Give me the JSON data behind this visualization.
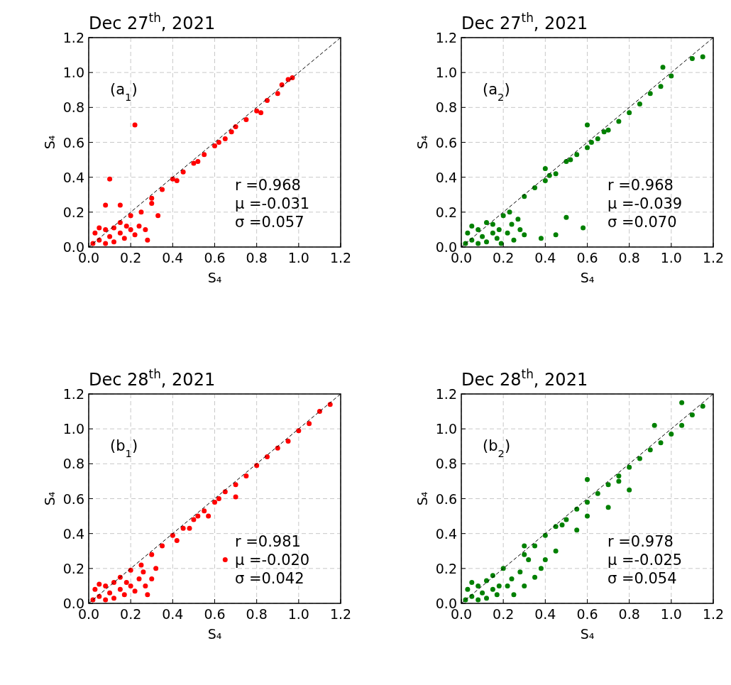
{
  "chart_data": [
    {
      "type": "scatter",
      "title": "Dec 27$^{th}$, 2021",
      "xlabel": "S₄",
      "ylabel": "S₄",
      "xlim": [
        0,
        1.2
      ],
      "ylim": [
        0,
        1.2
      ],
      "grid": true,
      "marker": "circle",
      "xticks": [
        {
          "value": 0,
          "label": "0.0"
        },
        {
          "value": 0.2,
          "label": "0.2"
        },
        {
          "value": 0.4,
          "label": "0.4"
        },
        {
          "value": 0.6,
          "label": "0.6"
        },
        {
          "value": 0.8,
          "label": "0.8"
        },
        {
          "value": 1,
          "label": "1.0"
        },
        {
          "value": 1.2,
          "label": "1.2"
        }
      ],
      "yticks": [
        {
          "value": 0,
          "label": "0.0"
        },
        {
          "value": 0.2,
          "label": "0.2"
        },
        {
          "value": 0.4,
          "label": "0.4"
        },
        {
          "value": 0.6,
          "label": "0.6"
        },
        {
          "value": 0.8,
          "label": "0.8"
        },
        {
          "value": 1,
          "label": "1.0"
        },
        {
          "value": 1.2,
          "label": "1.2"
        }
      ],
      "annotations": [
        "(a$_{1}$)",
        "r  =0.968",
        "μ =-0.031",
        "σ =0.057"
      ],
      "series": [
        {
          "color": "#ff0000",
          "x": [
            0.02,
            0.03,
            0.05,
            0.05,
            0.08,
            0.08,
            0.1,
            0.12,
            0.12,
            0.15,
            0.15,
            0.17,
            0.18,
            0.2,
            0.2,
            0.22,
            0.24,
            0.25,
            0.27,
            0.28,
            0.1,
            0.08,
            0.15,
            0.22,
            0.3,
            0.33,
            0.3,
            0.35,
            0.4,
            0.42,
            0.45,
            0.5,
            0.52,
            0.55,
            0.6,
            0.62,
            0.65,
            0.68,
            0.7,
            0.75,
            0.8,
            0.82,
            0.85,
            0.9,
            0.92,
            0.95,
            0.97
          ],
          "values": [
            0.02,
            0.08,
            0.11,
            0.04,
            0.1,
            0.02,
            0.06,
            0.11,
            0.03,
            0.08,
            0.14,
            0.05,
            0.12,
            0.18,
            0.1,
            0.07,
            0.12,
            0.2,
            0.1,
            0.04,
            0.39,
            0.24,
            0.24,
            0.7,
            0.25,
            0.18,
            0.28,
            0.33,
            0.39,
            0.38,
            0.43,
            0.48,
            0.49,
            0.53,
            0.58,
            0.6,
            0.62,
            0.66,
            0.69,
            0.73,
            0.78,
            0.77,
            0.84,
            0.88,
            0.93,
            0.96,
            0.97
          ]
        },
        {
          "type": "line",
          "color": "#000000",
          "line_style": "dashed",
          "marker": "none",
          "x": [
            0,
            1.2
          ],
          "values": [
            0,
            1.2
          ]
        }
      ]
    },
    {
      "type": "scatter",
      "title": "Dec 27$^{th}$, 2021",
      "xlabel": "S₄",
      "ylabel": "S₄",
      "xlim": [
        0,
        1.2
      ],
      "ylim": [
        0,
        1.2
      ],
      "grid": true,
      "marker": "circle",
      "xticks": [
        {
          "value": 0,
          "label": "0.0"
        },
        {
          "value": 0.2,
          "label": "0.2"
        },
        {
          "value": 0.4,
          "label": "0.4"
        },
        {
          "value": 0.6,
          "label": "0.6"
        },
        {
          "value": 0.8,
          "label": "0.8"
        },
        {
          "value": 1,
          "label": "1.0"
        },
        {
          "value": 1.2,
          "label": "1.2"
        }
      ],
      "yticks": [
        {
          "value": 0,
          "label": "0.0"
        },
        {
          "value": 0.2,
          "label": "0.2"
        },
        {
          "value": 0.4,
          "label": "0.4"
        },
        {
          "value": 0.6,
          "label": "0.6"
        },
        {
          "value": 0.8,
          "label": "0.8"
        },
        {
          "value": 1,
          "label": "1.0"
        },
        {
          "value": 1.2,
          "label": "1.2"
        }
      ],
      "annotations": [
        "(a$_{2}$)",
        "r  =0.968",
        "μ =-0.039",
        "σ =0.070"
      ],
      "series": [
        {
          "color": "#008000",
          "x": [
            0.02,
            0.03,
            0.05,
            0.05,
            0.08,
            0.08,
            0.1,
            0.12,
            0.12,
            0.15,
            0.15,
            0.17,
            0.18,
            0.2,
            0.19,
            0.22,
            0.24,
            0.25,
            0.27,
            0.28,
            0.23,
            0.3,
            0.38,
            0.45,
            0.5,
            0.58,
            0.4,
            0.6,
            0.3,
            0.35,
            0.4,
            0.42,
            0.45,
            0.5,
            0.52,
            0.55,
            0.6,
            0.62,
            0.65,
            0.68,
            0.7,
            0.75,
            0.8,
            0.85,
            0.9,
            0.95,
            1.0,
            1.1,
            1.15,
            0.96
          ],
          "values": [
            0.02,
            0.08,
            0.12,
            0.04,
            0.1,
            0.02,
            0.06,
            0.14,
            0.03,
            0.08,
            0.13,
            0.05,
            0.1,
            0.18,
            0.02,
            0.08,
            0.13,
            0.04,
            0.16,
            0.1,
            0.2,
            0.07,
            0.05,
            0.07,
            0.17,
            0.11,
            0.45,
            0.7,
            0.29,
            0.34,
            0.38,
            0.41,
            0.42,
            0.49,
            0.5,
            0.53,
            0.57,
            0.6,
            0.62,
            0.66,
            0.67,
            0.72,
            0.77,
            0.82,
            0.88,
            0.92,
            0.98,
            1.08,
            1.09,
            1.03
          ]
        },
        {
          "type": "line",
          "color": "#000000",
          "line_style": "dashed",
          "marker": "none",
          "x": [
            0,
            1.2
          ],
          "values": [
            0,
            1.2
          ]
        }
      ]
    },
    {
      "type": "scatter",
      "title": "Dec 28$^{th}$, 2021",
      "xlabel": "S₄",
      "ylabel": "S₄",
      "xlim": [
        0,
        1.2
      ],
      "ylim": [
        0,
        1.2
      ],
      "grid": true,
      "marker": "circle",
      "xticks": [
        {
          "value": 0,
          "label": "0.0"
        },
        {
          "value": 0.2,
          "label": "0.2"
        },
        {
          "value": 0.4,
          "label": "0.4"
        },
        {
          "value": 0.6,
          "label": "0.6"
        },
        {
          "value": 0.8,
          "label": "0.8"
        },
        {
          "value": 1,
          "label": "1.0"
        },
        {
          "value": 1.2,
          "label": "1.2"
        }
      ],
      "yticks": [
        {
          "value": 0,
          "label": "0.0"
        },
        {
          "value": 0.2,
          "label": "0.2"
        },
        {
          "value": 0.4,
          "label": "0.4"
        },
        {
          "value": 0.6,
          "label": "0.6"
        },
        {
          "value": 0.8,
          "label": "0.8"
        },
        {
          "value": 1,
          "label": "1.0"
        },
        {
          "value": 1.2,
          "label": "1.2"
        }
      ],
      "annotations": [
        "(b$_{1}$)",
        "r  =0.981",
        "μ =-0.020",
        "σ =0.042"
      ],
      "series": [
        {
          "color": "#ff0000",
          "x": [
            0.02,
            0.03,
            0.05,
            0.05,
            0.08,
            0.08,
            0.1,
            0.12,
            0.12,
            0.15,
            0.15,
            0.17,
            0.18,
            0.2,
            0.2,
            0.22,
            0.24,
            0.25,
            0.27,
            0.28,
            0.3,
            0.26,
            0.32,
            0.42,
            0.48,
            0.57,
            0.65,
            0.7,
            0.3,
            0.35,
            0.4,
            0.45,
            0.5,
            0.52,
            0.55,
            0.6,
            0.62,
            0.65,
            0.7,
            0.75,
            0.8,
            0.85,
            0.9,
            0.95,
            1.0,
            1.05,
            1.1,
            1.15
          ],
          "values": [
            0.02,
            0.08,
            0.11,
            0.04,
            0.1,
            0.02,
            0.06,
            0.12,
            0.03,
            0.08,
            0.15,
            0.05,
            0.12,
            0.19,
            0.1,
            0.07,
            0.14,
            0.22,
            0.1,
            0.05,
            0.14,
            0.18,
            0.2,
            0.36,
            0.43,
            0.5,
            0.25,
            0.61,
            0.28,
            0.33,
            0.39,
            0.43,
            0.48,
            0.5,
            0.53,
            0.58,
            0.6,
            0.64,
            0.68,
            0.73,
            0.79,
            0.84,
            0.89,
            0.93,
            0.99,
            1.03,
            1.1,
            1.14
          ]
        },
        {
          "type": "line",
          "color": "#000000",
          "line_style": "dashed",
          "marker": "none",
          "x": [
            0,
            1.2
          ],
          "values": [
            0,
            1.2
          ]
        }
      ]
    },
    {
      "type": "scatter",
      "title": "Dec 28$^{th}$, 2021",
      "xlabel": "S₄",
      "ylabel": "S₄",
      "xlim": [
        0,
        1.2
      ],
      "ylim": [
        0,
        1.2
      ],
      "grid": true,
      "marker": "circle",
      "xticks": [
        {
          "value": 0,
          "label": "0.0"
        },
        {
          "value": 0.2,
          "label": "0.2"
        },
        {
          "value": 0.4,
          "label": "0.4"
        },
        {
          "value": 0.6,
          "label": "0.6"
        },
        {
          "value": 0.8,
          "label": "0.8"
        },
        {
          "value": 1,
          "label": "1.0"
        },
        {
          "value": 1.2,
          "label": "1.2"
        }
      ],
      "yticks": [
        {
          "value": 0,
          "label": "0.0"
        },
        {
          "value": 0.2,
          "label": "0.2"
        },
        {
          "value": 0.4,
          "label": "0.4"
        },
        {
          "value": 0.6,
          "label": "0.6"
        },
        {
          "value": 0.8,
          "label": "0.8"
        },
        {
          "value": 1,
          "label": "1.0"
        },
        {
          "value": 1.2,
          "label": "1.2"
        }
      ],
      "annotations": [
        "(b$_{2}$)",
        "r  =0.978",
        "μ =-0.025",
        "σ =0.054"
      ],
      "series": [
        {
          "color": "#008000",
          "x": [
            0.02,
            0.03,
            0.05,
            0.05,
            0.08,
            0.08,
            0.1,
            0.12,
            0.12,
            0.15,
            0.15,
            0.17,
            0.18,
            0.2,
            0.22,
            0.24,
            0.25,
            0.28,
            0.3,
            0.32,
            0.35,
            0.38,
            0.3,
            0.4,
            0.45,
            0.48,
            0.55,
            0.6,
            0.6,
            0.7,
            0.75,
            0.8,
            0.3,
            0.35,
            0.4,
            0.45,
            0.5,
            0.55,
            0.6,
            0.65,
            0.7,
            0.75,
            0.8,
            0.85,
            0.9,
            0.95,
            1.0,
            1.05,
            1.1,
            1.15,
            0.92,
            1.05
          ],
          "values": [
            0.02,
            0.08,
            0.12,
            0.04,
            0.1,
            0.02,
            0.06,
            0.13,
            0.03,
            0.08,
            0.16,
            0.05,
            0.1,
            0.2,
            0.1,
            0.14,
            0.05,
            0.18,
            0.1,
            0.25,
            0.15,
            0.2,
            0.33,
            0.25,
            0.3,
            0.45,
            0.42,
            0.5,
            0.71,
            0.55,
            0.7,
            0.65,
            0.28,
            0.33,
            0.39,
            0.44,
            0.48,
            0.54,
            0.58,
            0.63,
            0.68,
            0.73,
            0.78,
            0.83,
            0.88,
            0.92,
            0.97,
            1.02,
            1.08,
            1.13,
            1.02,
            1.15
          ]
        },
        {
          "type": "line",
          "color": "#000000",
          "line_style": "dashed",
          "marker": "none",
          "x": [
            0,
            1.2
          ],
          "values": [
            0,
            1.2
          ]
        }
      ]
    }
  ]
}
